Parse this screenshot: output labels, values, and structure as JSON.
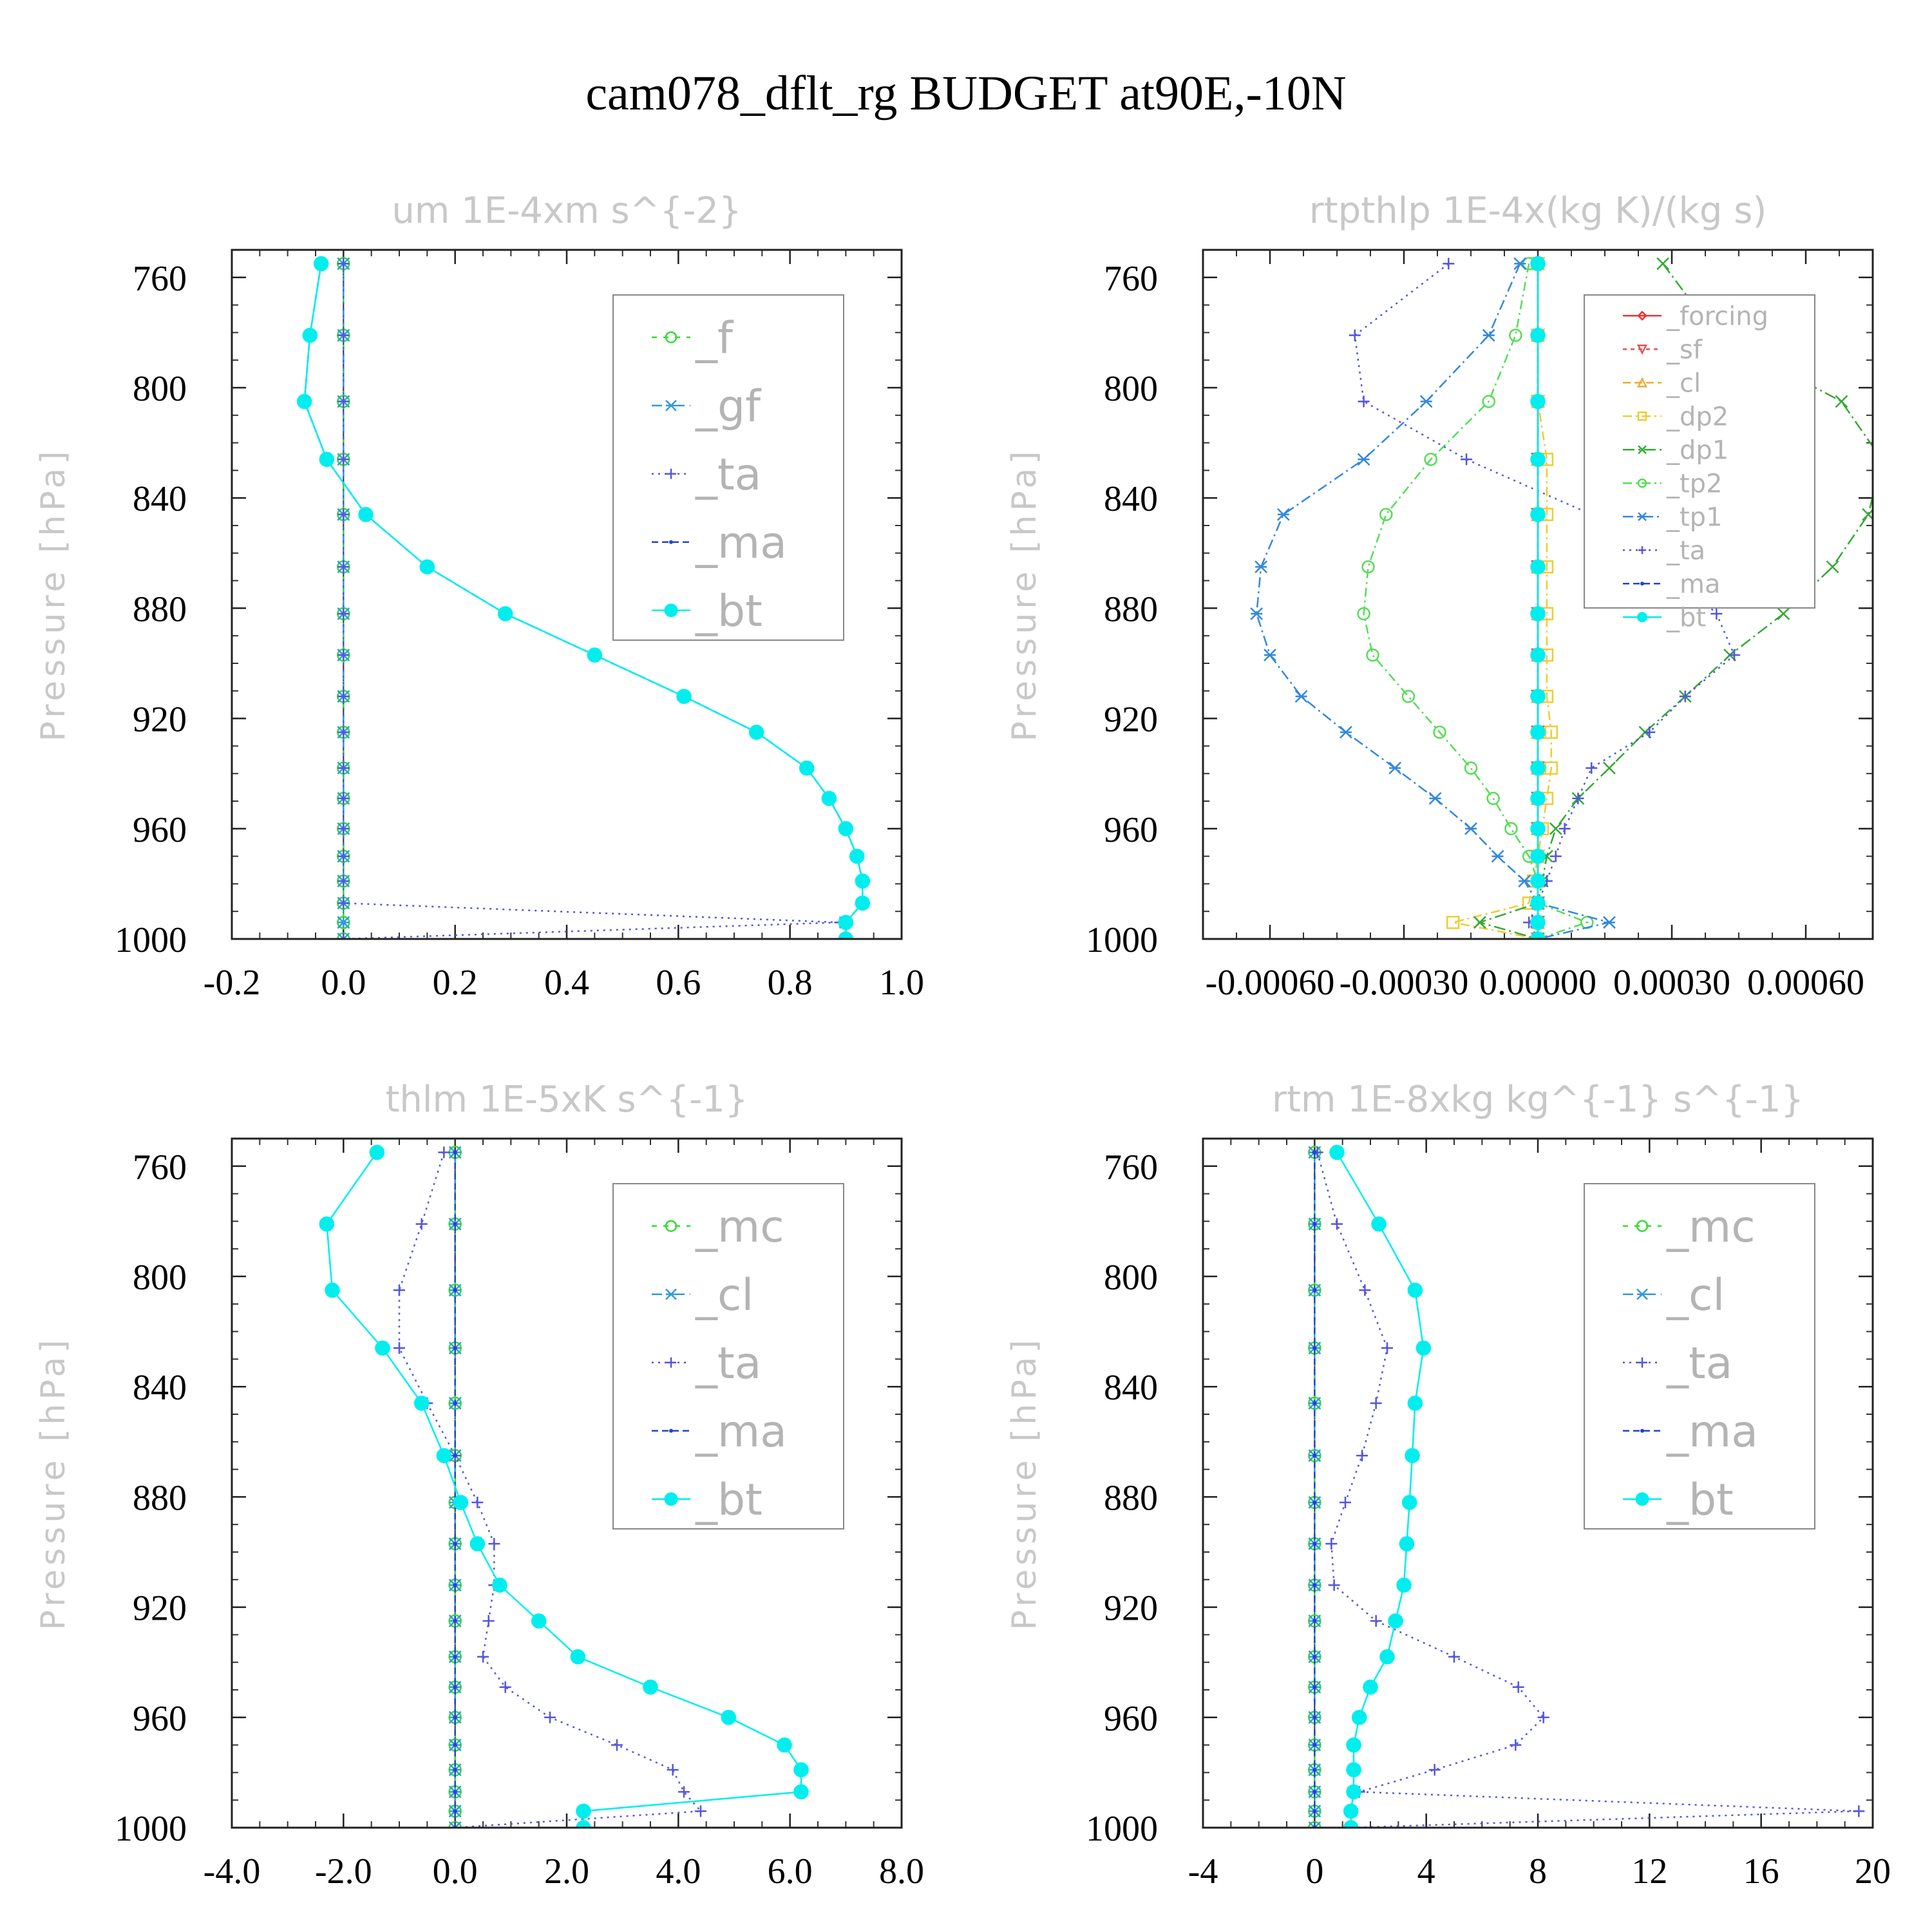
{
  "figure": {
    "title": "cam078_dflt_rg  BUDGET at90E,-10N"
  },
  "chart_data": [
    {
      "type": "line",
      "title": "um   1E-4xm s^{-2}",
      "ylabel": "Pressure [hPa]",
      "xlim": [
        -0.2,
        1.0
      ],
      "ylim": [
        1000,
        750
      ],
      "xticks": [
        -0.2,
        0.0,
        0.2,
        0.4,
        0.6,
        0.8,
        1.0
      ],
      "xtick_labels": [
        "-0.2",
        "0.0",
        "0.2",
        "0.4",
        "0.6",
        "0.8",
        "1.0"
      ],
      "yticks": [
        760,
        800,
        840,
        880,
        920,
        960,
        1000
      ],
      "ytick_labels": [
        "760",
        "800",
        "840",
        "880",
        "920",
        "960",
        "1000"
      ],
      "legend_location": "top-right",
      "y": [
        755,
        781,
        805,
        826,
        846,
        865,
        882,
        897,
        912,
        925,
        938,
        949,
        960,
        970,
        979,
        987,
        994,
        1000
      ],
      "series": [
        {
          "name": "_f",
          "color": "#33dd33",
          "marker": "circle",
          "dash": "8,10",
          "values": [
            0,
            0,
            0,
            0,
            0,
            0,
            0,
            0,
            0,
            0,
            0,
            0,
            0,
            0,
            0,
            0,
            0,
            0
          ]
        },
        {
          "name": "_gf",
          "color": "#3399dd",
          "marker": "star",
          "dash": "16,8,3,8",
          "values": [
            0,
            0,
            0,
            0,
            0,
            0,
            0,
            0,
            0,
            0,
            0,
            0,
            0,
            0,
            0,
            0,
            0,
            0
          ]
        },
        {
          "name": "_ta",
          "color": "#5555dd",
          "marker": "plus",
          "dash": "3,7",
          "values": [
            0,
            0,
            0,
            0,
            0,
            0,
            0,
            0,
            0,
            0,
            0,
            0,
            0,
            0,
            0,
            0,
            0.89,
            0
          ]
        },
        {
          "name": "_ma",
          "color": "#2244cc",
          "marker": "dot",
          "dash": "10,6",
          "values": [
            -0.04,
            -0.06,
            -0.07,
            -0.03,
            0.04,
            0.15,
            0.29,
            0.45,
            0.61,
            0.74,
            0.83,
            0.87,
            0.9,
            0.92,
            0.93,
            0.93,
            0.9,
            0.9
          ]
        },
        {
          "name": "_bt",
          "color": "#00eeee",
          "marker": "filled",
          "dash": "",
          "values": [
            -0.04,
            -0.06,
            -0.07,
            -0.03,
            0.04,
            0.15,
            0.29,
            0.45,
            0.61,
            0.74,
            0.83,
            0.87,
            0.9,
            0.92,
            0.93,
            0.93,
            0.9,
            0.9
          ]
        }
      ]
    },
    {
      "type": "line",
      "title": "rtpthlp   1E-4x(kg K)/(kg s)",
      "ylabel": "Pressure [hPa]",
      "xlim": [
        -0.00075,
        0.00075
      ],
      "ylim": [
        1000,
        750
      ],
      "xticks": [
        -0.0006,
        -0.0003,
        0.0,
        0.0003,
        0.0006
      ],
      "xtick_labels": [
        "-0.00060",
        "-0.00030",
        "0.00000",
        "0.00030",
        "0.00060"
      ],
      "yticks": [
        760,
        800,
        840,
        880,
        920,
        960,
        1000
      ],
      "ytick_labels": [
        "760",
        "800",
        "840",
        "880",
        "920",
        "960",
        "1000"
      ],
      "legend_location": "top-right",
      "y": [
        755,
        781,
        805,
        826,
        846,
        865,
        882,
        897,
        912,
        925,
        938,
        949,
        960,
        970,
        979,
        987,
        994,
        1000
      ],
      "series": [
        {
          "name": "_forcing",
          "color": "#ee3333",
          "marker": "diamond",
          "dash": "",
          "values": [
            0,
            0,
            0,
            0,
            0,
            0,
            0,
            0,
            0,
            0,
            0,
            0,
            0,
            0,
            0,
            0,
            0,
            0
          ]
        },
        {
          "name": "_sf",
          "color": "#dd5555",
          "marker": "tridown",
          "dash": "6,6",
          "values": [
            0,
            0,
            0,
            0,
            0,
            0,
            0,
            0,
            0,
            0,
            0,
            0,
            0,
            0,
            0,
            0,
            0,
            0
          ]
        },
        {
          "name": "_cl",
          "color": "#eeaa33",
          "marker": "triup",
          "dash": "12,6",
          "values": [
            0,
            0,
            0,
            0,
            0,
            0,
            0,
            0,
            0,
            0,
            0,
            0,
            0,
            0,
            0,
            0,
            0,
            0
          ]
        },
        {
          "name": "_dp2",
          "color": "#eecc33",
          "marker": "square",
          "dash": "14,6,3,6",
          "values": [
            0,
            0,
            0,
            2e-05,
            2e-05,
            2e-05,
            2e-05,
            2e-05,
            2e-05,
            3e-05,
            3e-05,
            2e-05,
            1e-05,
            0,
            -1e-05,
            -2e-05,
            -0.00019,
            0
          ]
        },
        {
          "name": "_dp1",
          "color": "#33aa33",
          "marker": "xcross",
          "dash": "18,6,3,6",
          "values": [
            0.00028,
            0.0004,
            0.00068,
            0.00077,
            0.00074,
            0.00066,
            0.00055,
            0.00043,
            0.00033,
            0.00024,
            0.00016,
            9e-05,
            4e-05,
            2e-05,
            1e-05,
            0,
            -0.00013,
            0
          ]
        },
        {
          "name": "_tp2",
          "color": "#55dd55",
          "marker": "circle",
          "dash": "14,6,3,6",
          "values": [
            -2e-05,
            -5e-05,
            -0.00011,
            -0.00024,
            -0.00034,
            -0.00038,
            -0.00039,
            -0.00037,
            -0.00029,
            -0.00022,
            -0.00015,
            -0.0001,
            -6e-05,
            -2e-05,
            0,
            0,
            0.00011,
            0
          ]
        },
        {
          "name": "_tp1",
          "color": "#3388dd",
          "marker": "star",
          "dash": "16,6,3,6",
          "values": [
            -4e-05,
            -0.00011,
            -0.00025,
            -0.00039,
            -0.00057,
            -0.00062,
            -0.00063,
            -0.0006,
            -0.00053,
            -0.00043,
            -0.00032,
            -0.00023,
            -0.00015,
            -9e-05,
            -3e-05,
            0,
            0.00016,
            0
          ]
        },
        {
          "name": "_ta",
          "color": "#5555dd",
          "marker": "plus",
          "dash": "3,7",
          "values": [
            -0.0002,
            -0.00041,
            -0.00039,
            -0.00016,
            0.00012,
            0.00029,
            0.0004,
            0.00044,
            0.00033,
            0.00025,
            0.00012,
            9e-05,
            6e-05,
            4e-05,
            2e-05,
            0,
            -2e-05,
            0
          ]
        },
        {
          "name": "_ma",
          "color": "#2244cc",
          "marker": "dot",
          "dash": "10,6",
          "values": [
            0,
            0,
            0,
            0,
            0,
            0,
            0,
            0,
            0,
            0,
            0,
            0,
            0,
            0,
            0,
            0,
            0,
            0
          ]
        },
        {
          "name": "_bt",
          "color": "#00eeee",
          "marker": "filled",
          "dash": "",
          "values": [
            0,
            0,
            0,
            0,
            0,
            0,
            0,
            0,
            0,
            0,
            0,
            0,
            0,
            0,
            0,
            0,
            0,
            0
          ]
        }
      ]
    },
    {
      "type": "line",
      "title": "thlm   1E-5xK s^{-1}",
      "ylabel": "Pressure [hPa]",
      "xlim": [
        -4.0,
        8.0
      ],
      "ylim": [
        1000,
        750
      ],
      "xticks": [
        -4.0,
        -2.0,
        0.0,
        2.0,
        4.0,
        6.0,
        8.0
      ],
      "xtick_labels": [
        "-4.0",
        "-2.0",
        "0.0",
        "2.0",
        "4.0",
        "6.0",
        "8.0"
      ],
      "yticks": [
        760,
        800,
        840,
        880,
        920,
        960,
        1000
      ],
      "ytick_labels": [
        "760",
        "800",
        "840",
        "880",
        "920",
        "960",
        "1000"
      ],
      "legend_location": "top-right",
      "y": [
        755,
        781,
        805,
        826,
        846,
        865,
        882,
        897,
        912,
        925,
        938,
        949,
        960,
        970,
        979,
        987,
        994,
        1000
      ],
      "series": [
        {
          "name": "_mc",
          "color": "#33dd33",
          "marker": "circle",
          "dash": "8,10",
          "values": [
            0,
            0,
            0,
            0,
            0,
            0,
            0,
            0,
            0,
            0,
            0,
            0,
            0,
            0,
            0,
            0,
            0,
            0
          ]
        },
        {
          "name": "_cl",
          "color": "#3399dd",
          "marker": "star",
          "dash": "16,8,3,8",
          "values": [
            0,
            0,
            0,
            0,
            0,
            0,
            0,
            0,
            0,
            0,
            0,
            0,
            0,
            0,
            0,
            0,
            0,
            0
          ]
        },
        {
          "name": "_ta",
          "color": "#5555dd",
          "marker": "plus",
          "dash": "3,7",
          "values": [
            -0.2,
            -0.6,
            -1.0,
            -1.0,
            -0.5,
            0,
            0.4,
            0.7,
            0.7,
            0.6,
            0.5,
            0.9,
            1.7,
            2.9,
            3.9,
            4.1,
            4.4,
            0
          ]
        },
        {
          "name": "_ma",
          "color": "#2244cc",
          "marker": "dot",
          "dash": "10,6",
          "values": [
            0,
            0,
            0,
            0,
            0,
            0,
            0,
            0,
            0,
            0,
            0,
            0,
            0,
            0,
            0,
            0,
            0,
            0
          ]
        },
        {
          "name": "_bt",
          "color": "#00eeee",
          "marker": "filled",
          "dash": "",
          "values": [
            -1.4,
            -2.3,
            -2.2,
            -1.3,
            -0.6,
            -0.2,
            0.1,
            0.4,
            0.8,
            1.5,
            2.2,
            3.5,
            4.9,
            5.9,
            6.2,
            6.2,
            2.3,
            2.3
          ]
        }
      ]
    },
    {
      "type": "line",
      "title": "rtm   1E-8xkg kg^{-1} s^{-1}",
      "ylabel": "Pressure [hPa]",
      "xlim": [
        -4,
        20
      ],
      "ylim": [
        1000,
        750
      ],
      "xticks": [
        -4,
        0,
        4,
        8,
        12,
        16,
        20
      ],
      "xtick_labels": [
        "-4",
        "0",
        "4",
        "8",
        "12",
        "16",
        "20"
      ],
      "yticks": [
        760,
        800,
        840,
        880,
        920,
        960,
        1000
      ],
      "ytick_labels": [
        "760",
        "800",
        "840",
        "880",
        "920",
        "960",
        "1000"
      ],
      "legend_location": "top-right",
      "y": [
        755,
        781,
        805,
        826,
        846,
        865,
        882,
        897,
        912,
        925,
        938,
        949,
        960,
        970,
        979,
        987,
        994,
        1000
      ],
      "series": [
        {
          "name": "_mc",
          "color": "#33dd33",
          "marker": "circle",
          "dash": "8,10",
          "values": [
            0,
            0,
            0,
            0,
            0,
            0,
            0,
            0,
            0,
            0,
            0,
            0,
            0,
            0,
            0,
            0,
            0,
            0
          ]
        },
        {
          "name": "_cl",
          "color": "#3399dd",
          "marker": "star",
          "dash": "16,8,3,8",
          "values": [
            0,
            0,
            0,
            0,
            0,
            0,
            0,
            0,
            0,
            0,
            0,
            0,
            0,
            0,
            0,
            0,
            0,
            0
          ]
        },
        {
          "name": "_ta",
          "color": "#5555dd",
          "marker": "plus",
          "dash": "3,7",
          "values": [
            0.1,
            0.8,
            1.8,
            2.6,
            2.2,
            1.7,
            1.1,
            0.6,
            0.7,
            2.2,
            5.0,
            7.3,
            8.2,
            7.2,
            4.3,
            1.6,
            19.5,
            1.3
          ]
        },
        {
          "name": "_ma",
          "color": "#2244cc",
          "marker": "dot",
          "dash": "10,6",
          "values": [
            0,
            0,
            0,
            0,
            0,
            0,
            0,
            0,
            0,
            0,
            0,
            0,
            0,
            0,
            0,
            0,
            0,
            0
          ]
        },
        {
          "name": "_bt",
          "color": "#00eeee",
          "marker": "filled",
          "dash": "",
          "values": [
            0.8,
            2.3,
            3.6,
            3.9,
            3.6,
            3.5,
            3.4,
            3.3,
            3.2,
            2.9,
            2.6,
            2.0,
            1.6,
            1.4,
            1.4,
            1.4,
            1.3,
            1.3
          ]
        }
      ]
    }
  ]
}
